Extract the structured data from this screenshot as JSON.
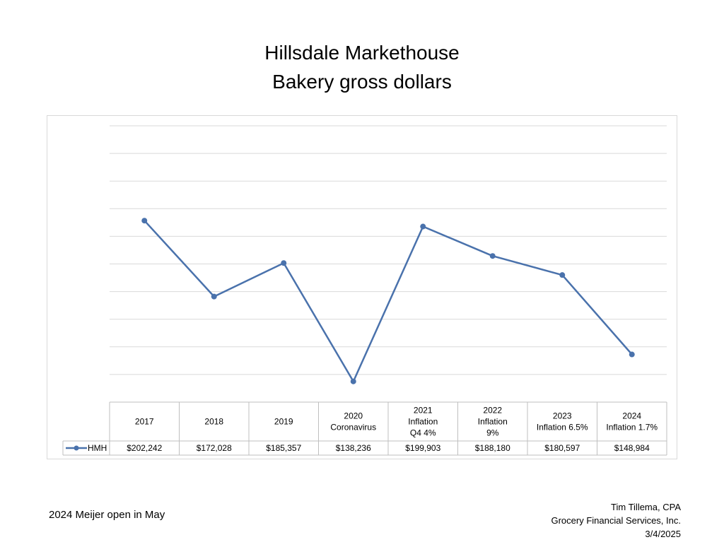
{
  "title_line1": "Hillsdale Markethouse",
  "title_line2": "Bakery gross dollars",
  "footnote": "2024 Meijer open in May",
  "credit": {
    "name": "Tim Tillema, CPA",
    "firm": "Grocery Financial Services, Inc.",
    "date": "3/4/2025"
  },
  "colors": {
    "series": "#4a72ac",
    "grid": "#d9d9d9",
    "table_border": "#bfbfbf"
  },
  "chart_data": {
    "type": "line",
    "title": "Hillsdale Markethouse Bakery gross dollars",
    "x_categories": [
      [
        "2017"
      ],
      [
        "2018"
      ],
      [
        "2019"
      ],
      [
        "2020",
        "Coronavirus"
      ],
      [
        "2021",
        "Inflation",
        "Q4 4%"
      ],
      [
        "2022",
        "Inflation",
        "9%"
      ],
      [
        "2023",
        "Inflation 6.5%"
      ],
      [
        "2024",
        "Inflation 1.7%"
      ]
    ],
    "series": [
      {
        "name": "HMH",
        "values": [
          202242,
          172028,
          185357,
          138236,
          199903,
          188180,
          180597,
          148984
        ],
        "value_labels": [
          "$202,242",
          "$172,028",
          "$185,357",
          "$138,236",
          "$199,903",
          "$188,180",
          "$180,597",
          "$148,984"
        ]
      }
    ],
    "ylim": [
      130000,
      240000
    ],
    "gridlines": 11,
    "y_tick_labels_shown": false,
    "grid": true,
    "legend": "data-table"
  }
}
